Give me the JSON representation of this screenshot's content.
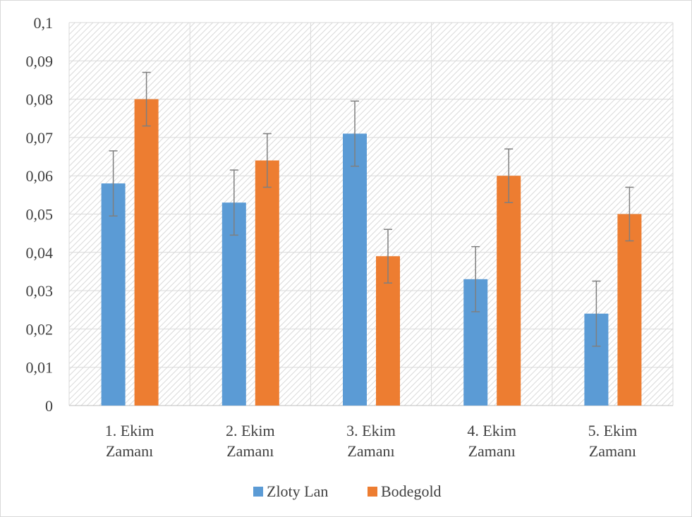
{
  "chart_data": {
    "type": "bar",
    "title": "",
    "xlabel": "",
    "ylabel": "",
    "ylim": [
      0,
      0.1
    ],
    "yticks": [
      "0",
      "0,01",
      "0,02",
      "0,03",
      "0,04",
      "0,05",
      "0,06",
      "0,07",
      "0,08",
      "0,09",
      "0,1"
    ],
    "categories": [
      [
        "1. Ekim",
        "Zamanı"
      ],
      [
        "2. Ekim",
        "Zamanı"
      ],
      [
        "3. Ekim",
        "Zamanı"
      ],
      [
        "4. Ekim",
        "Zamanı"
      ],
      [
        "5. Ekim",
        "Zamanı"
      ]
    ],
    "series": [
      {
        "name": "Zloty Lan",
        "color": "#5b9bd5",
        "values": [
          0.058,
          0.053,
          0.071,
          0.033,
          0.024
        ],
        "error": [
          0.0085,
          0.0085,
          0.0085,
          0.0085,
          0.0085
        ]
      },
      {
        "name": "Bodegold",
        "color": "#ed7d31",
        "values": [
          0.08,
          0.064,
          0.039,
          0.06,
          0.05
        ],
        "error": [
          0.007,
          0.007,
          0.007,
          0.007,
          0.007
        ]
      }
    ],
    "grid": true,
    "legend_position": "bottom",
    "plot_background": "diagonal hatch",
    "error_bar_color": "#7f7f7f"
  }
}
